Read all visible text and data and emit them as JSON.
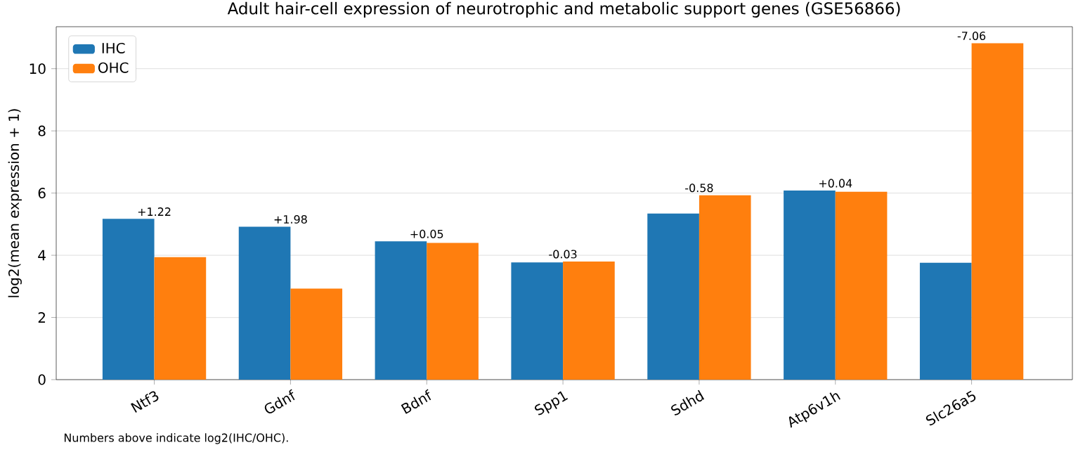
{
  "chart_data": {
    "type": "bar",
    "title": "Adult hair-cell expression of neurotrophic and metabolic support genes (GSE56866)",
    "ylabel": "log2(mean expression + 1)",
    "categories": [
      "Ntf3",
      "Gdnf",
      "Bdnf",
      "Spp1",
      "Sdhd",
      "Atp6v1h",
      "Slc26a5"
    ],
    "series": [
      {
        "name": "IHC",
        "color": "#1f77b4",
        "values": [
          5.17,
          4.92,
          4.45,
          3.77,
          5.34,
          6.08,
          3.76
        ]
      },
      {
        "name": "OHC",
        "color": "#ff7f0e",
        "values": [
          3.94,
          2.93,
          4.4,
          3.8,
          5.93,
          6.04,
          10.82
        ]
      }
    ],
    "ylim": [
      0,
      11.35
    ],
    "yticks": [
      0,
      2,
      4,
      6,
      8,
      10
    ],
    "grid": "y",
    "legend": "top left",
    "annotations": [
      {
        "text": "+1.22",
        "x": "Ntf3",
        "y": 5.17
      },
      {
        "text": "+1.98",
        "x": "Gdnf",
        "y": 4.92
      },
      {
        "text": "+0.05",
        "x": "Bdnf",
        "y": 4.45
      },
      {
        "text": "-0.03",
        "x": "Spp1",
        "y": 3.8
      },
      {
        "text": "-0.58",
        "x": "Sdhd",
        "y": 5.93
      },
      {
        "text": "+0.04",
        "x": "Atp6v1h",
        "y": 6.08
      },
      {
        "text": "-7.06",
        "x": "Slc26a5",
        "y": 10.82
      },
      "Numbers above indicate log2(IHC/OHC)."
    ]
  }
}
